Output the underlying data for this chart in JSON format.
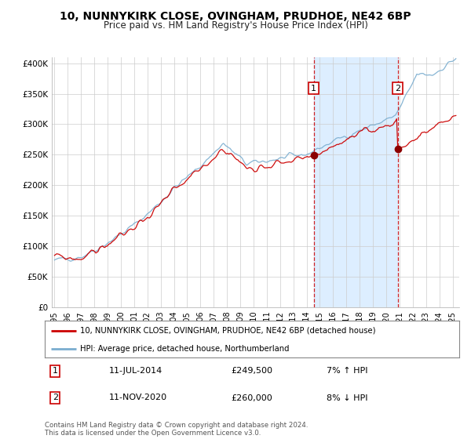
{
  "title": "10, NUNNYKIRK CLOSE, OVINGHAM, PRUDHOE, NE42 6BP",
  "subtitle": "Price paid vs. HM Land Registry's House Price Index (HPI)",
  "legend_line1": "10, NUNNYKIRK CLOSE, OVINGHAM, PRUDHOE, NE42 6BP (detached house)",
  "legend_line2": "HPI: Average price, detached house, Northumberland",
  "annotation1_date": "11-JUL-2014",
  "annotation1_price": "£249,500",
  "annotation1_hpi": "7% ↑ HPI",
  "annotation2_date": "11-NOV-2020",
  "annotation2_price": "£260,000",
  "annotation2_hpi": "8% ↓ HPI",
  "footer": "Contains HM Land Registry data © Crown copyright and database right 2024.\nThis data is licensed under the Open Government Licence v3.0.",
  "red_color": "#cc0000",
  "blue_color": "#7aadcf",
  "shading_color": "#ddeeff",
  "marker1_x": 2014.54,
  "marker1_y": 249500,
  "marker2_x": 2020.87,
  "marker2_y": 260000,
  "vline1_x": 2014.54,
  "vline2_x": 2020.87,
  "ylim": [
    0,
    410000
  ],
  "xlim_start": 1994.8,
  "xlim_end": 2025.5,
  "yticks": [
    0,
    50000,
    100000,
    150000,
    200000,
    250000,
    300000,
    350000,
    400000
  ],
  "ytick_labels": [
    "£0",
    "£50K",
    "£100K",
    "£150K",
    "£200K",
    "£250K",
    "£300K",
    "£350K",
    "£400K"
  ],
  "xticks": [
    1995,
    1996,
    1997,
    1998,
    1999,
    2000,
    2001,
    2002,
    2003,
    2004,
    2005,
    2006,
    2007,
    2008,
    2009,
    2010,
    2011,
    2012,
    2013,
    2014,
    2015,
    2016,
    2017,
    2018,
    2019,
    2020,
    2021,
    2022,
    2023,
    2024,
    2025
  ],
  "background_color": "#ffffff",
  "grid_color": "#cccccc"
}
